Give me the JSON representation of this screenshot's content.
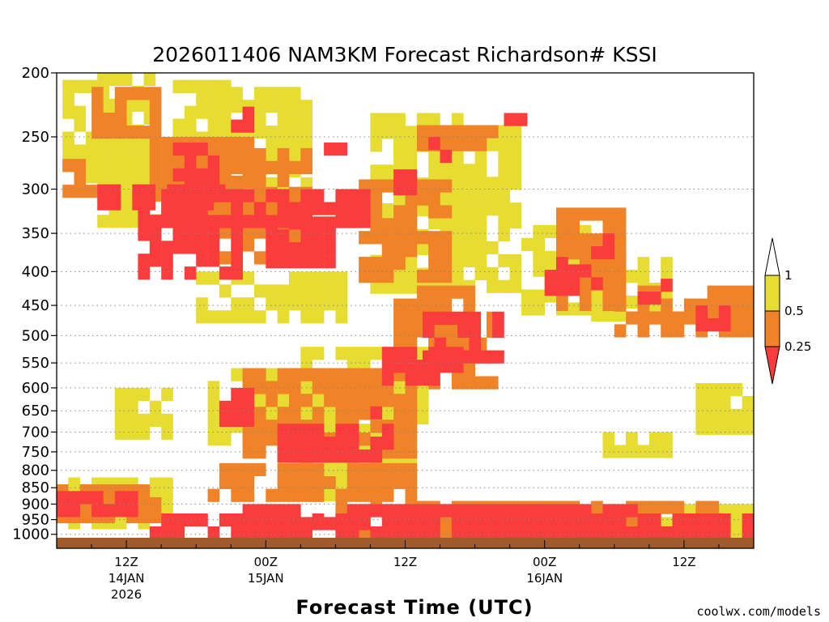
{
  "chart_data": {
    "type": "heatmap",
    "title": "2026011406 NAM3KM Forecast Richardson# KSSI",
    "xlabel": "Forecast Time (UTC)",
    "ylabel": "",
    "y_axis": {
      "scale": "log (pressure)",
      "range": [
        1050,
        200
      ],
      "ticks": [
        200,
        250,
        300,
        350,
        400,
        450,
        500,
        550,
        600,
        650,
        700,
        750,
        800,
        850,
        900,
        950,
        1000
      ],
      "grid": "dotted horizontal"
    },
    "x_axis": {
      "range_hours": [
        0,
        60
      ],
      "ticks": [
        {
          "hour": 6,
          "label": "12Z",
          "date": "14JAN",
          "year": "2026"
        },
        {
          "hour": 18,
          "label": "00Z",
          "date": "15JAN",
          "year": ""
        },
        {
          "hour": 30,
          "label": "12Z",
          "date": "",
          "year": ""
        },
        {
          "hour": 42,
          "label": "00Z",
          "date": "16JAN",
          "year": ""
        },
        {
          "hour": 54,
          "label": "12Z",
          "date": "",
          "year": ""
        }
      ]
    },
    "colorbar": {
      "levels": [
        "1",
        "0.5",
        "0.25"
      ],
      "bins": [
        {
          "range": "> 1",
          "color": "#ffffff"
        },
        {
          "range": "0.5 – 1",
          "color": "#e6dc32"
        },
        {
          "range": "0.25 – 0.5",
          "color": "#f08228"
        },
        {
          "range": "< 0.25",
          "color": "#fa3c3c"
        }
      ]
    },
    "colors": {
      "high": "#e6dc32",
      "mid": "#f08228",
      "low": "#fa3c3c",
      "ground": "#a05a2c"
    },
    "regions": [
      {
        "bin": "0.5 – 1",
        "hours": [
          0.5,
          4.5
        ],
        "p": [
          205,
          290
        ]
      },
      {
        "bin": "0.5 – 1",
        "hours": [
          3.5,
          8
        ],
        "p": [
          200,
          330
        ]
      },
      {
        "bin": "0.5 – 1",
        "hours": [
          10,
          15
        ],
        "p": [
          205,
          260
        ]
      },
      {
        "bin": "0.5 – 1",
        "hours": [
          13,
          22
        ],
        "p": [
          210,
          330
        ]
      },
      {
        "bin": "0.5 – 1",
        "hours": [
          29,
          32
        ],
        "p": [
          220,
          260
        ]
      },
      {
        "bin": "0.5 – 1",
        "hours": [
          27,
          35
        ],
        "p": [
          230,
          420
        ]
      },
      {
        "bin": "0.5 – 1",
        "hours": [
          33,
          40
        ],
        "p": [
          240,
          420
        ]
      },
      {
        "bin": "0.5 – 1",
        "hours": [
          40,
          48
        ],
        "p": [
          340,
          450
        ]
      },
      {
        "bin": "0.5 – 1",
        "hours": [
          46,
          53
        ],
        "p": [
          380,
          460
        ]
      },
      {
        "bin": "0.5 – 1",
        "hours": [
          12,
          25
        ],
        "p": [
          400,
          470
        ]
      },
      {
        "bin": "0.5 – 1",
        "hours": [
          13,
          22
        ],
        "p": [
          560,
          720
        ]
      },
      {
        "bin": "0.5 – 1",
        "hours": [
          5,
          10
        ],
        "p": [
          600,
          700
        ]
      },
      {
        "bin": "0.5 – 1",
        "hours": [
          21,
          32
        ],
        "p": [
          520,
          660
        ]
      },
      {
        "bin": "0.5 – 1",
        "hours": [
          55,
          60
        ],
        "p": [
          590,
          680
        ]
      },
      {
        "bin": "0.5 – 1",
        "hours": [
          47,
          53
        ],
        "p": [
          700,
          760
        ]
      },
      {
        "bin": "0.5 – 1",
        "hours": [
          20,
          31
        ],
        "p": [
          680,
          880
        ]
      },
      {
        "bin": "0.5 – 1",
        "hours": [
          1,
          10
        ],
        "p": [
          820,
          960
        ]
      },
      {
        "bin": "0.5 – 1",
        "hours": [
          40,
          60
        ],
        "p": [
          900,
          1000
        ]
      },
      {
        "bin": "0.25 – 0.5",
        "hours": [
          0.5,
          3
        ],
        "p": [
          270,
          300
        ]
      },
      {
        "bin": "0.25 – 0.5",
        "hours": [
          3,
          9
        ],
        "p": [
          210,
          245
        ]
      },
      {
        "bin": "0.25 – 0.5",
        "hours": [
          8,
          17
        ],
        "p": [
          250,
          340
        ]
      },
      {
        "bin": "0.25 – 0.5",
        "hours": [
          14,
          22
        ],
        "p": [
          260,
          390
        ]
      },
      {
        "bin": "0.25 – 0.5",
        "hours": [
          26,
          34
        ],
        "p": [
          290,
          400
        ]
      },
      {
        "bin": "0.25 – 0.5",
        "hours": [
          30,
          38
        ],
        "p": [
          240,
          260
        ]
      },
      {
        "bin": "0.25 – 0.5",
        "hours": [
          29,
          36
        ],
        "p": [
          420,
          520
        ]
      },
      {
        "bin": "0.25 – 0.5",
        "hours": [
          32,
          38
        ],
        "p": [
          460,
          600
        ]
      },
      {
        "bin": "0.25 – 0.5",
        "hours": [
          43,
          49
        ],
        "p": [
          320,
          450
        ]
      },
      {
        "bin": "0.25 – 0.5",
        "hours": [
          48,
          60
        ],
        "p": [
          420,
          500
        ]
      },
      {
        "bin": "0.25 – 0.5",
        "hours": [
          16,
          31
        ],
        "p": [
          560,
          740
        ]
      },
      {
        "bin": "0.25 – 0.5",
        "hours": [
          13,
          31
        ],
        "p": [
          780,
          880
        ]
      },
      {
        "bin": "0.25 – 0.5",
        "hours": [
          0,
          9
        ],
        "p": [
          840,
          960
        ]
      },
      {
        "bin": "0.25 – 0.5",
        "hours": [
          24,
          58
        ],
        "p": [
          890,
          1000
        ]
      },
      {
        "bin": "< 0.25",
        "hours": [
          3.5,
          14
        ],
        "p": [
          295,
          320
        ]
      },
      {
        "bin": "< 0.25",
        "hours": [
          7,
          16
        ],
        "p": [
          300,
          400
        ]
      },
      {
        "bin": "< 0.25",
        "hours": [
          10,
          14
        ],
        "p": [
          255,
          300
        ]
      },
      {
        "bin": "< 0.25",
        "hours": [
          15,
          17
        ],
        "p": [
          225,
          245
        ]
      },
      {
        "bin": "< 0.25",
        "hours": [
          15,
          27
        ],
        "p": [
          300,
          340
        ]
      },
      {
        "bin": "< 0.25",
        "hours": [
          18,
          24
        ],
        "p": [
          330,
          380
        ]
      },
      {
        "bin": "< 0.25",
        "hours": [
          23,
          25
        ],
        "p": [
          255,
          265
        ]
      },
      {
        "bin": "< 0.25",
        "hours": [
          29,
          31
        ],
        "p": [
          280,
          295
        ]
      },
      {
        "bin": "< 0.25",
        "hours": [
          32,
          34
        ],
        "p": [
          250,
          265
        ]
      },
      {
        "bin": "< 0.25",
        "hours": [
          38.5,
          40.5
        ],
        "p": [
          230,
          240
        ]
      },
      {
        "bin": "< 0.25",
        "hours": [
          31.5,
          38
        ],
        "p": [
          460,
          530
        ]
      },
      {
        "bin": "< 0.25",
        "hours": [
          28,
          35
        ],
        "p": [
          520,
          580
        ]
      },
      {
        "bin": "< 0.25",
        "hours": [
          42,
          45
        ],
        "p": [
          380,
          420
        ]
      },
      {
        "bin": "< 0.25",
        "hours": [
          44,
          48
        ],
        "p": [
          390,
          420
        ]
      },
      {
        "bin": "< 0.25",
        "hours": [
          46,
          47.5
        ],
        "p": [
          350,
          380
        ]
      },
      {
        "bin": "< 0.25",
        "hours": [
          50,
          53
        ],
        "p": [
          410,
          440
        ]
      },
      {
        "bin": "< 0.25",
        "hours": [
          55,
          57.5
        ],
        "p": [
          450,
          480
        ]
      },
      {
        "bin": "< 0.25",
        "hours": [
          14,
          17
        ],
        "p": [
          600,
          680
        ]
      },
      {
        "bin": "< 0.25",
        "hours": [
          19,
          29
        ],
        "p": [
          680,
          760
        ]
      },
      {
        "bin": "< 0.25",
        "hours": [
          26,
          28
        ],
        "p": [
          640,
          670
        ]
      },
      {
        "bin": "< 0.25",
        "hours": [
          0,
          7
        ],
        "p": [
          860,
          940
        ]
      },
      {
        "bin": "< 0.25",
        "hours": [
          8,
          60
        ],
        "p": [
          930,
          1010
        ]
      },
      {
        "bin": "< 0.25",
        "hours": [
          16,
          50
        ],
        "p": [
          900,
          960
        ]
      }
    ]
  },
  "footer": {
    "credit": "coolwx.com/models"
  }
}
